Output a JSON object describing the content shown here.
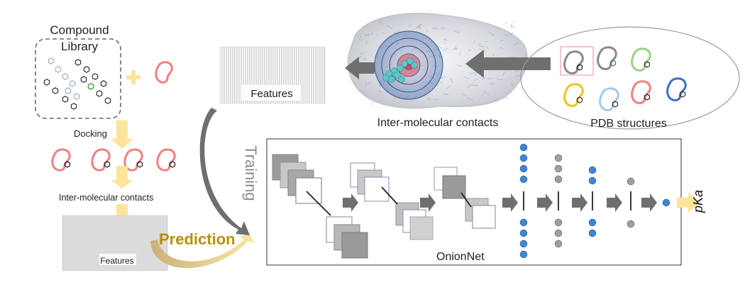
{
  "labels": {
    "compound_library": [
      "Compound",
      "Library"
    ],
    "docking": "Docking",
    "inter_contacts_left": "Inter-molecular contacts",
    "features_left": "Features",
    "prediction": "Prediction",
    "training": "Training",
    "features_top": "Features",
    "inter_contacts_top": "Inter-molecular contacts",
    "pdb_structures": "PDB structures",
    "onionnet": "OnionNet",
    "output": "pKa"
  },
  "colors": {
    "protein_pink": "#f08080",
    "arrow_yellow": "#fce49a",
    "prediction_gold": "#b8900a",
    "arrow_gray": "#6f6f6f",
    "node_blue": "#3b86d8",
    "node_gray": "#9aa0a8",
    "pdb_green": "#9ed08a",
    "pdb_yellow": "#f2c21a",
    "pdb_lightblue": "#a5c8e8",
    "pdb_blue": "#3c6fc4",
    "pdb_gray": "#8a8a8a"
  },
  "icons": [
    "protein-outline-icon",
    "ligand-hexagon-icon",
    "neuron-node-icon",
    "arrow-icon"
  ]
}
